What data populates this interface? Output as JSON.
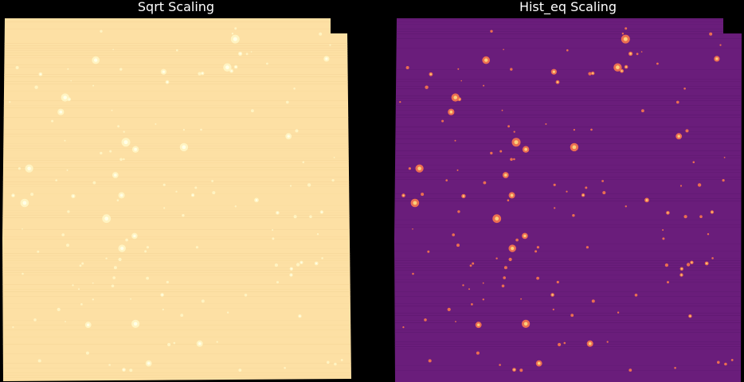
{
  "panels": [
    {
      "title": "Sqrt Scaling",
      "colors": {
        "background": "#fde0a4",
        "band_dark": "#f6d79a",
        "source": "#fff7c8",
        "source_core": "#ffffe8"
      }
    },
    {
      "title": "Hist_eq Scaling",
      "colors": {
        "background": "#6a1d7b",
        "band_dark": "#5e1870",
        "source": "#f2734f",
        "source_core": "#fcd07a"
      }
    }
  ]
}
